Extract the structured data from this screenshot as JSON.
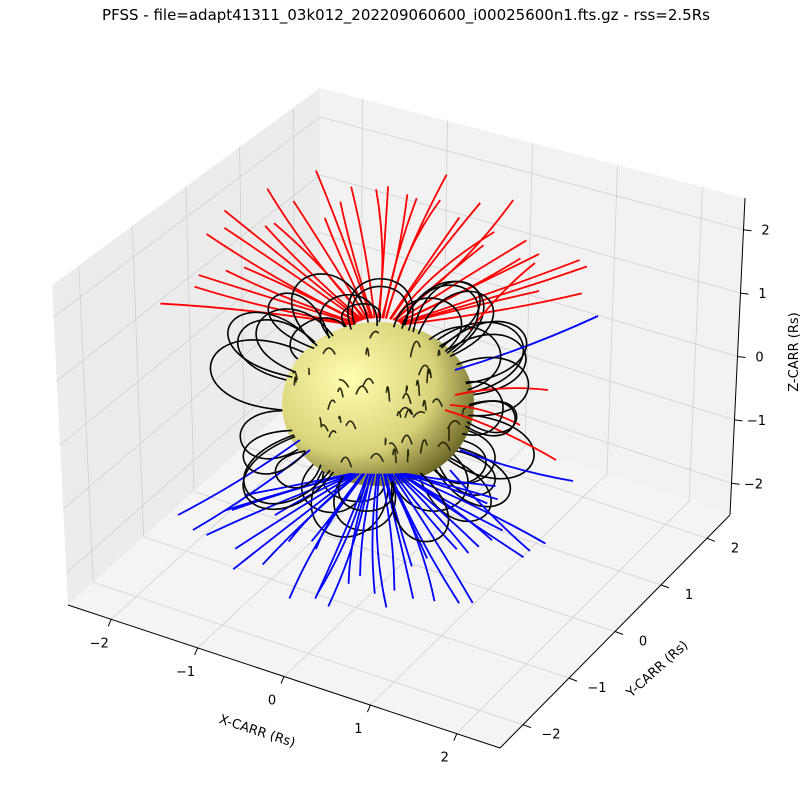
{
  "chart_data": {
    "type": "line",
    "projection": "3d",
    "title": "PFSS - file=adapt41311_03k012_202209060600_i00025600n1.fts.gz - rss=2.5Rs",
    "xlabel": "X-CARR (Rs)",
    "ylabel": "Y-CARR (Rs)",
    "zlabel": "Z-CARR (Rs)",
    "xlim": [
      -2.5,
      2.5
    ],
    "ylim": [
      -2.5,
      2.5
    ],
    "zlim": [
      -2.5,
      2.5
    ],
    "x_ticks": [
      "−2",
      "−1",
      "0",
      "1",
      "2"
    ],
    "y_ticks": [
      "−2",
      "−1",
      "0",
      "1",
      "2"
    ],
    "z_ticks": [
      "−2",
      "−1",
      "0",
      "1",
      "2"
    ],
    "grid": true,
    "sphere": {
      "radius": 1,
      "color": "#f5f07a"
    },
    "series": [
      {
        "color": "#ff0000",
        "kind": "open field lines, positive polarity"
      },
      {
        "color": "#0000ff",
        "kind": "open field lines, negative polarity"
      },
      {
        "color": "#000000",
        "kind": "closed field lines"
      }
    ]
  }
}
